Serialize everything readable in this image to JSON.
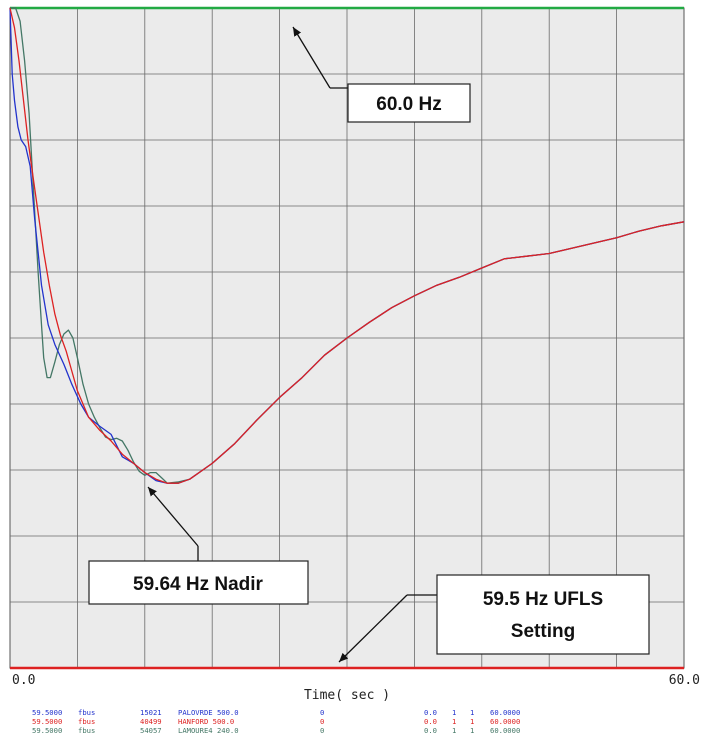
{
  "chart_data": {
    "type": "line",
    "title": "",
    "xlabel": "Time( sec )",
    "ylabel": "",
    "xlim": [
      0,
      60
    ],
    "ylim": [
      59.5,
      60.0
    ],
    "grid": true,
    "x_tick_labels": [
      "0.0",
      "60.0"
    ],
    "series": [
      {
        "name": "PALOVRDE 500.0",
        "color": "#2233cc",
        "points": [
          [
            0,
            60.0
          ],
          [
            0.2,
            59.95
          ],
          [
            0.4,
            59.93
          ],
          [
            0.7,
            59.91
          ],
          [
            1.0,
            59.9
          ],
          [
            1.4,
            59.895
          ],
          [
            1.8,
            59.88
          ],
          [
            2.2,
            59.84
          ],
          [
            2.8,
            59.79
          ],
          [
            3.4,
            59.76
          ],
          [
            4.0,
            59.745
          ],
          [
            4.8,
            59.73
          ],
          [
            5.5,
            59.715
          ],
          [
            6.3,
            59.7
          ],
          [
            7.0,
            59.69
          ],
          [
            8.0,
            59.683
          ],
          [
            9.0,
            59.677
          ],
          [
            10.0,
            59.66
          ],
          [
            11.0,
            59.655
          ],
          [
            12.0,
            59.648
          ],
          [
            13.0,
            59.642
          ],
          [
            14.0,
            59.64
          ],
          [
            15.0,
            59.64
          ],
          [
            16.0,
            59.643
          ],
          [
            18.0,
            59.655
          ],
          [
            20.0,
            59.67
          ],
          [
            22.0,
            59.688
          ],
          [
            24.0,
            59.705
          ],
          [
            26.0,
            59.72
          ],
          [
            28.0,
            59.737
          ],
          [
            30.0,
            59.75
          ],
          [
            32.0,
            59.762
          ],
          [
            34.0,
            59.773
          ],
          [
            36.0,
            59.782
          ],
          [
            38.0,
            59.79
          ],
          [
            40.0,
            59.796
          ],
          [
            42.0,
            59.803
          ],
          [
            44.0,
            59.81
          ],
          [
            46.0,
            59.812
          ],
          [
            48.0,
            59.814
          ],
          [
            50.0,
            59.818
          ],
          [
            52.0,
            59.822
          ],
          [
            54.0,
            59.826
          ],
          [
            56.0,
            59.831
          ],
          [
            58.0,
            59.835
          ],
          [
            60.0,
            59.838
          ]
        ]
      },
      {
        "name": "HANFORD 500.0",
        "color": "#dd2222",
        "points": [
          [
            0,
            60.0
          ],
          [
            0.4,
            59.985
          ],
          [
            0.8,
            59.96
          ],
          [
            1.2,
            59.93
          ],
          [
            1.6,
            59.9
          ],
          [
            2.0,
            59.875
          ],
          [
            2.5,
            59.845
          ],
          [
            3.0,
            59.815
          ],
          [
            3.5,
            59.79
          ],
          [
            4.0,
            59.768
          ],
          [
            4.5,
            59.752
          ],
          [
            5.0,
            59.74
          ],
          [
            5.5,
            59.725
          ],
          [
            6.0,
            59.71
          ],
          [
            7.0,
            59.69
          ],
          [
            8.0,
            59.68
          ],
          [
            9.0,
            59.672
          ],
          [
            10.0,
            59.662
          ],
          [
            11.0,
            59.655
          ],
          [
            12.0,
            59.648
          ],
          [
            13.0,
            59.643
          ],
          [
            14.0,
            59.64
          ],
          [
            15.0,
            59.64
          ],
          [
            16.0,
            59.643
          ],
          [
            18.0,
            59.655
          ],
          [
            20.0,
            59.67
          ],
          [
            22.0,
            59.688
          ],
          [
            24.0,
            59.705
          ],
          [
            26.0,
            59.72
          ],
          [
            28.0,
            59.737
          ],
          [
            30.0,
            59.75
          ],
          [
            32.0,
            59.762
          ],
          [
            34.0,
            59.773
          ],
          [
            36.0,
            59.782
          ],
          [
            38.0,
            59.79
          ],
          [
            40.0,
            59.796
          ],
          [
            42.0,
            59.803
          ],
          [
            44.0,
            59.81
          ],
          [
            46.0,
            59.812
          ],
          [
            48.0,
            59.814
          ],
          [
            50.0,
            59.818
          ],
          [
            52.0,
            59.822
          ],
          [
            54.0,
            59.826
          ],
          [
            56.0,
            59.831
          ],
          [
            58.0,
            59.835
          ],
          [
            60.0,
            59.838
          ]
        ]
      },
      {
        "name": "LAMOURE4 240.0",
        "color": "#447766",
        "points": [
          [
            0,
            60.0
          ],
          [
            0.5,
            60.0
          ],
          [
            0.9,
            59.99
          ],
          [
            1.3,
            59.96
          ],
          [
            1.7,
            59.92
          ],
          [
            2.1,
            59.86
          ],
          [
            2.5,
            59.8
          ],
          [
            2.8,
            59.76
          ],
          [
            3.0,
            59.735
          ],
          [
            3.3,
            59.72
          ],
          [
            3.6,
            59.72
          ],
          [
            4.0,
            59.732
          ],
          [
            4.4,
            59.745
          ],
          [
            4.8,
            59.753
          ],
          [
            5.2,
            59.756
          ],
          [
            5.6,
            59.75
          ],
          [
            6.0,
            59.735
          ],
          [
            6.5,
            59.715
          ],
          [
            7.0,
            59.7
          ],
          [
            7.5,
            59.69
          ],
          [
            8.0,
            59.682
          ],
          [
            8.5,
            59.675
          ],
          [
            9.0,
            59.673
          ],
          [
            9.5,
            59.674
          ],
          [
            10.0,
            59.672
          ],
          [
            10.5,
            59.665
          ],
          [
            11.0,
            59.656
          ],
          [
            11.5,
            59.649
          ],
          [
            12.0,
            59.646
          ],
          [
            12.5,
            59.648
          ],
          [
            13.0,
            59.648
          ],
          [
            13.5,
            59.644
          ],
          [
            14.0,
            59.64
          ],
          [
            15.0,
            59.641
          ],
          [
            16.0,
            59.643
          ],
          [
            18.0,
            59.655
          ],
          [
            20.0,
            59.67
          ],
          [
            22.0,
            59.688
          ],
          [
            24.0,
            59.705
          ],
          [
            26.0,
            59.72
          ],
          [
            28.0,
            59.737
          ],
          [
            30.0,
            59.75
          ],
          [
            32.0,
            59.762
          ],
          [
            34.0,
            59.773
          ],
          [
            36.0,
            59.782
          ],
          [
            38.0,
            59.79
          ],
          [
            40.0,
            59.796
          ],
          [
            42.0,
            59.803
          ],
          [
            44.0,
            59.81
          ],
          [
            46.0,
            59.812
          ],
          [
            48.0,
            59.814
          ],
          [
            50.0,
            59.818
          ],
          [
            52.0,
            59.822
          ],
          [
            54.0,
            59.826
          ],
          [
            56.0,
            59.831
          ],
          [
            58.0,
            59.835
          ],
          [
            60.0,
            59.838
          ]
        ]
      }
    ],
    "reference_lines": [
      {
        "y": 60.0,
        "color": "#22aa44"
      },
      {
        "y": 59.5,
        "color": "#dd2222"
      }
    ],
    "annotations": [
      {
        "text": "60.0 Hz",
        "target": [
          25.0,
          60.0
        ]
      },
      {
        "text": "59.64 Hz Nadir",
        "target": [
          12.0,
          59.641
        ]
      },
      {
        "lines": [
          "59.5 Hz UFLS",
          "Setting"
        ],
        "target": [
          29.0,
          59.5
        ]
      }
    ],
    "legend_rows": [
      {
        "color": "#2233cc",
        "cells": [
          "59.5000",
          "fbus",
          "15021",
          "PALOVRDE 500.0",
          "0",
          "0.0",
          "1",
          "1",
          "60.0000"
        ]
      },
      {
        "color": "#dd2222",
        "cells": [
          "59.5000",
          "fbus",
          "40499",
          "HANFORD 500.0",
          "0",
          "0.0",
          "1",
          "1",
          "60.0000"
        ]
      },
      {
        "color": "#447766",
        "cells": [
          "59.5000",
          "fbus",
          "54057",
          "LAMOURE4 240.0",
          "0",
          "0.0",
          "1",
          "1",
          "60.0000"
        ]
      }
    ]
  }
}
